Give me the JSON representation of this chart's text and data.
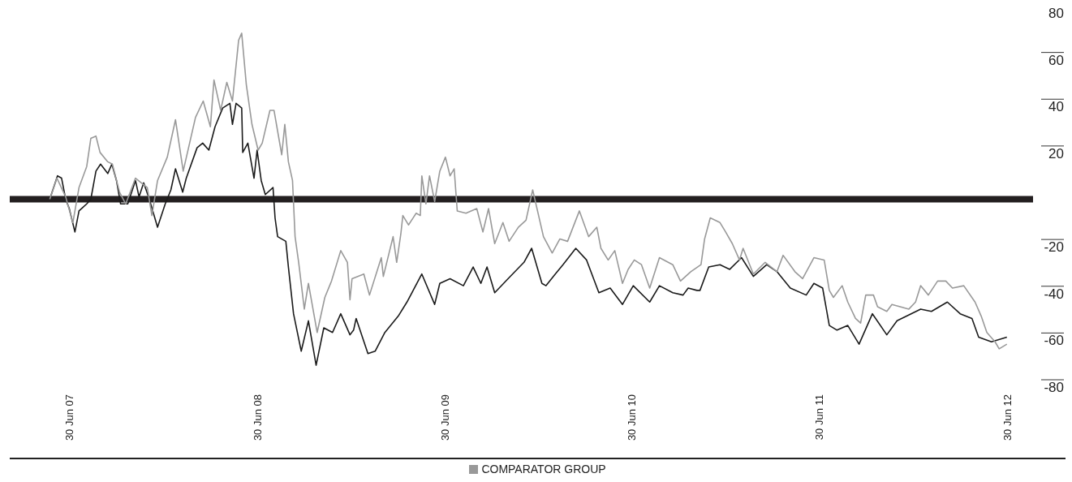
{
  "chart_data": {
    "type": "line",
    "legend": "bottom",
    "xlim": [
      "2007-03-06",
      "2012-08-20"
    ],
    "ylim": [
      -80,
      80
    ],
    "yticks": [
      -80,
      -60,
      -40,
      -20,
      20,
      40,
      60,
      80
    ],
    "xticks": [
      {
        "value": "2007-06-30",
        "label": "30 Jun 07"
      },
      {
        "value": "2008-06-30",
        "label": "30 Jun 08"
      },
      {
        "value": "2009-06-30",
        "label": "30 Jun 09"
      },
      {
        "value": "2010-06-30",
        "label": "30 Jun 10"
      },
      {
        "value": "2011-06-30",
        "label": "30 Jun 11"
      },
      {
        "value": "2012-06-30",
        "label": "30 Jun 12"
      }
    ],
    "ref_lines": [
      {
        "axis": "y",
        "value": 0,
        "color": "#231f20"
      }
    ],
    "series": [
      {
        "color": "#1a1a1a",
        "x": [
          "2007-05-23",
          "2007-06-07",
          "2007-06-15",
          "2007-06-23",
          "2007-06-30",
          "2007-07-11",
          "2007-07-19",
          "2007-08-03",
          "2007-08-11",
          "2007-08-21",
          "2007-08-30",
          "2007-09-13",
          "2007-09-21",
          "2007-09-30",
          "2007-10-08",
          "2007-10-22",
          "2007-11-06",
          "2007-11-13",
          "2007-11-22",
          "2007-12-03",
          "2007-12-19",
          "2008-01-03",
          "2008-01-14",
          "2008-01-23",
          "2008-02-06",
          "2008-02-13",
          "2008-03-05",
          "2008-03-16",
          "2008-03-28",
          "2008-04-09",
          "2008-04-24",
          "2008-05-08",
          "2008-05-13",
          "2008-05-20",
          "2008-05-31",
          "2008-06-02",
          "2008-06-12",
          "2008-06-24",
          "2008-06-30",
          "2008-07-08",
          "2008-07-16",
          "2008-07-31",
          "2008-08-04",
          "2008-08-09",
          "2008-08-25",
          "2008-08-30",
          "2008-09-09",
          "2008-09-24",
          "2008-10-08",
          "2008-10-23",
          "2008-11-07",
          "2008-11-24",
          "2008-12-10",
          "2008-12-28",
          "2009-01-04",
          "2009-01-09",
          "2009-02-01",
          "2009-02-15",
          "2009-03-06",
          "2009-04-01",
          "2009-04-18",
          "2009-05-17",
          "2009-06-11",
          "2009-06-21",
          "2009-07-11",
          "2009-08-06",
          "2009-08-25",
          "2009-09-09",
          "2009-09-21",
          "2009-10-06",
          "2009-11-01",
          "2009-12-02",
          "2009-12-17",
          "2010-01-06",
          "2010-01-14",
          "2010-02-01",
          "2010-02-16",
          "2010-03-13",
          "2010-04-03",
          "2010-04-27",
          "2010-05-19",
          "2010-06-12",
          "2010-07-03",
          "2010-08-04",
          "2010-08-23",
          "2010-09-18",
          "2010-10-08",
          "2010-10-18",
          "2010-11-04",
          "2010-11-10",
          "2010-11-27",
          "2010-12-19",
          "2011-01-07",
          "2011-01-30",
          "2011-02-22",
          "2011-03-20",
          "2011-04-09",
          "2011-05-05",
          "2011-06-05",
          "2011-06-20",
          "2011-07-07",
          "2011-07-20",
          "2011-08-04",
          "2011-08-25",
          "2011-09-16",
          "2011-10-12",
          "2011-11-09",
          "2011-11-29",
          "2012-01-14",
          "2012-02-04",
          "2012-03-06",
          "2012-03-31",
          "2012-04-23",
          "2012-05-06",
          "2012-05-31",
          "2012-06-30"
        ],
        "values": [
          0,
          10,
          9,
          0,
          -4,
          -14,
          -5,
          -2,
          0,
          12,
          15,
          11,
          15,
          8,
          -2,
          -2,
          8,
          1,
          7,
          0,
          -12,
          -2,
          4,
          13,
          3,
          9,
          22,
          24,
          21,
          31,
          39,
          41,
          32,
          41,
          39,
          20,
          24,
          9,
          21,
          8,
          2,
          5,
          -8,
          -16,
          -18,
          -29,
          -49,
          -65,
          -52,
          -71,
          -55,
          -57,
          -49,
          -58,
          -56,
          -51,
          -66,
          -65,
          -57,
          -50,
          -44,
          -32,
          -45,
          -36,
          -34,
          -37,
          -29,
          -36,
          -29,
          -40,
          -34,
          -27,
          -21,
          -36,
          -37,
          -32,
          -28,
          -21,
          -26,
          -40,
          -38,
          -45,
          -37,
          -44,
          -37,
          -40,
          -41,
          -38,
          -39,
          -39,
          -29,
          -28,
          -30,
          -25,
          -33,
          -28,
          -31,
          -38,
          -41,
          -36,
          -38,
          -54,
          -56,
          -54,
          -62,
          -49,
          -58,
          -52,
          -47,
          -48,
          -44,
          -49,
          -51,
          -59,
          -61,
          -59
        ]
      },
      {
        "name": "COMPARATOR GROUP",
        "color": "#999999",
        "x": [
          "2007-05-23",
          "2007-06-06",
          "2007-06-23",
          "2007-07-07",
          "2007-07-19",
          "2007-08-03",
          "2007-08-11",
          "2007-08-21",
          "2007-08-29",
          "2007-09-13",
          "2007-09-22",
          "2007-10-06",
          "2007-10-18",
          "2007-11-06",
          "2007-11-29",
          "2007-12-08",
          "2007-12-19",
          "2008-01-07",
          "2008-01-23",
          "2008-02-07",
          "2008-03-02",
          "2008-03-17",
          "2008-03-31",
          "2008-04-07",
          "2008-04-20",
          "2008-05-02",
          "2008-05-13",
          "2008-05-25",
          "2008-05-31",
          "2008-06-09",
          "2008-06-20",
          "2008-07-02",
          "2008-07-10",
          "2008-07-25",
          "2008-08-02",
          "2008-08-17",
          "2008-08-23",
          "2008-08-30",
          "2008-09-07",
          "2008-09-12",
          "2008-09-19",
          "2008-09-30",
          "2008-10-08",
          "2008-10-25",
          "2008-11-09",
          "2008-11-22",
          "2008-12-10",
          "2008-12-23",
          "2008-12-28",
          "2009-01-01",
          "2009-01-24",
          "2009-02-04",
          "2009-02-27",
          "2009-03-03",
          "2009-03-22",
          "2009-03-29",
          "2009-04-06",
          "2009-04-10",
          "2009-04-21",
          "2009-05-06",
          "2009-05-14",
          "2009-05-17",
          "2009-05-25",
          "2009-06-01",
          "2009-06-11",
          "2009-06-21",
          "2009-07-02",
          "2009-07-11",
          "2009-07-19",
          "2009-07-25",
          "2009-08-11",
          "2009-09-01",
          "2009-09-13",
          "2009-09-24",
          "2009-10-06",
          "2009-10-22",
          "2009-11-03",
          "2009-11-21",
          "2009-12-06",
          "2009-12-19",
          "2010-01-09",
          "2010-01-26",
          "2010-02-10",
          "2010-02-25",
          "2010-03-20",
          "2010-04-07",
          "2010-04-23",
          "2010-05-01",
          "2010-05-15",
          "2010-05-28",
          "2010-06-12",
          "2010-06-23",
          "2010-07-05",
          "2010-07-19",
          "2010-08-04",
          "2010-08-23",
          "2010-09-18",
          "2010-10-03",
          "2010-10-23",
          "2010-11-12",
          "2010-11-19",
          "2010-11-30",
          "2010-12-19",
          "2010-12-30",
          "2011-01-12",
          "2011-01-26",
          "2011-02-02",
          "2011-02-22",
          "2011-03-17",
          "2011-04-09",
          "2011-04-21",
          "2011-05-14",
          "2011-05-29",
          "2011-06-20",
          "2011-07-10",
          "2011-07-20",
          "2011-07-28",
          "2011-08-14",
          "2011-08-25",
          "2011-09-09",
          "2011-09-19",
          "2011-09-29",
          "2011-10-14",
          "2011-10-22",
          "2011-11-09",
          "2011-11-19",
          "2011-12-05",
          "2011-12-22",
          "2012-01-04",
          "2012-01-14",
          "2012-01-29",
          "2012-02-16",
          "2012-03-03",
          "2012-03-16",
          "2012-04-07",
          "2012-04-29",
          "2012-05-11",
          "2012-05-22",
          "2012-06-07",
          "2012-06-15",
          "2012-06-30"
        ],
        "values": [
          0,
          9,
          1,
          -10,
          5,
          14,
          26,
          27,
          20,
          16,
          15,
          3,
          -2,
          9,
          5,
          -7,
          8,
          18,
          34,
          12,
          35,
          42,
          31,
          51,
          38,
          50,
          42,
          68,
          71,
          49,
          32,
          21,
          24,
          38,
          38,
          19,
          32,
          16,
          8,
          -16,
          -27,
          -47,
          -36,
          -57,
          -42,
          -35,
          -22,
          -27,
          -43,
          -34,
          -32,
          -41,
          -25,
          -33,
          -16,
          -27,
          -15,
          -7,
          -11,
          -6,
          -7,
          10,
          -2,
          10,
          -1,
          12,
          18,
          10,
          13,
          -5,
          -6,
          -4,
          -14,
          -4,
          -19,
          -10,
          -18,
          -12,
          -9,
          4,
          -16,
          -23,
          -17,
          -18,
          -5,
          -16,
          -12,
          -21,
          -26,
          -22,
          -36,
          -30,
          -26,
          -28,
          -38,
          -25,
          -28,
          -35,
          -31,
          -28,
          -17,
          -8,
          -10,
          -14,
          -19,
          -26,
          -21,
          -32,
          -27,
          -31,
          -24,
          -31,
          -34,
          -25,
          -26,
          -39,
          -42,
          -37,
          -44,
          -51,
          -53,
          -41,
          -41,
          -46,
          -48,
          -45,
          -46,
          -47,
          -44,
          -37,
          -41,
          -35,
          -35,
          -38,
          -37,
          -44,
          -50,
          -57,
          -61,
          -64,
          -62
        ]
      }
    ]
  }
}
